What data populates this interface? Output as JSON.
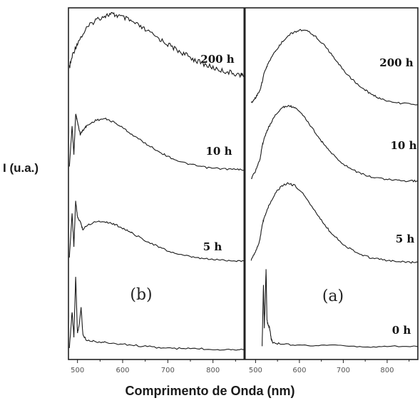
{
  "chart_data": [
    {
      "type": "line",
      "panel": "(b)",
      "xlabel": "Comprimento de Onda (nm)",
      "ylabel": "I (u.a.)",
      "xlim": [
        480,
        870
      ],
      "xticks": [
        500,
        600,
        700,
        800
      ],
      "grid": false,
      "series": [
        {
          "name": "200 h",
          "x": [
            482,
            490,
            500,
            520,
            540,
            560,
            575,
            590,
            610,
            630,
            650,
            680,
            700,
            720,
            740,
            760,
            780,
            800,
            820,
            840,
            860,
            870
          ],
          "y": [
            0.25,
            0.45,
            0.6,
            0.8,
            0.92,
            0.98,
            1.0,
            0.98,
            0.93,
            0.86,
            0.78,
            0.66,
            0.58,
            0.5,
            0.43,
            0.36,
            0.3,
            0.25,
            0.21,
            0.18,
            0.15,
            0.14
          ]
        },
        {
          "name": "10 h",
          "x": [
            482,
            488,
            492,
            496,
            500,
            506,
            512,
            520,
            540,
            560,
            580,
            600,
            620,
            650,
            680,
            700,
            730,
            760,
            790,
            820,
            850,
            870
          ],
          "y": [
            0.05,
            0.55,
            0.2,
            0.7,
            0.6,
            0.45,
            0.5,
            0.55,
            0.62,
            0.64,
            0.6,
            0.53,
            0.45,
            0.34,
            0.24,
            0.18,
            0.11,
            0.07,
            0.04,
            0.03,
            0.02,
            0.02
          ]
        },
        {
          "name": "5 h",
          "x": [
            482,
            488,
            492,
            496,
            500,
            506,
            512,
            520,
            540,
            560,
            580,
            600,
            620,
            650,
            680,
            700,
            730,
            760,
            790,
            820,
            850,
            870
          ],
          "y": [
            0.05,
            0.6,
            0.2,
            0.75,
            0.55,
            0.5,
            0.4,
            0.45,
            0.5,
            0.5,
            0.47,
            0.42,
            0.36,
            0.27,
            0.19,
            0.14,
            0.09,
            0.06,
            0.04,
            0.03,
            0.02,
            0.02
          ]
        },
        {
          "name": "0 h",
          "x": [
            482,
            488,
            492,
            496,
            500,
            504,
            508,
            512,
            520,
            540,
            560,
            600,
            640,
            680,
            720,
            760,
            800,
            840,
            870
          ],
          "y": [
            0.02,
            0.45,
            0.15,
            0.85,
            0.2,
            0.3,
            0.5,
            0.18,
            0.12,
            0.1,
            0.09,
            0.07,
            0.05,
            0.03,
            0.02,
            0.02,
            0.01,
            0.01,
            0.01
          ]
        }
      ]
    },
    {
      "type": "line",
      "panel": "(a)",
      "xlabel": "Comprimento de Onda (nm)",
      "ylabel": "I (u.a.)",
      "xlim": [
        475,
        870
      ],
      "xticks": [
        500,
        600,
        700,
        800
      ],
      "grid": false,
      "series": [
        {
          "name": "200 h",
          "x": [
            490,
            500,
            510,
            515,
            520,
            530,
            545,
            560,
            580,
            600,
            620,
            640,
            660,
            680,
            700,
            720,
            740,
            760,
            780,
            800,
            830,
            870
          ],
          "y": [
            0.05,
            0.12,
            0.22,
            0.32,
            0.45,
            0.58,
            0.72,
            0.84,
            0.95,
            1.0,
            0.98,
            0.9,
            0.78,
            0.63,
            0.48,
            0.36,
            0.26,
            0.18,
            0.12,
            0.08,
            0.05,
            0.03
          ]
        },
        {
          "name": "10 h",
          "x": [
            490,
            500,
            510,
            515,
            520,
            530,
            545,
            560,
            575,
            590,
            610,
            630,
            650,
            670,
            700,
            730,
            760,
            790,
            820,
            850,
            870
          ],
          "y": [
            0.05,
            0.15,
            0.3,
            0.48,
            0.58,
            0.72,
            0.88,
            0.97,
            1.0,
            0.97,
            0.86,
            0.7,
            0.54,
            0.4,
            0.24,
            0.14,
            0.08,
            0.05,
            0.03,
            0.02,
            0.02
          ]
        },
        {
          "name": "5 h",
          "x": [
            490,
            500,
            510,
            515,
            520,
            530,
            545,
            560,
            575,
            590,
            610,
            630,
            650,
            670,
            700,
            730,
            760,
            790,
            820,
            850,
            870
          ],
          "y": [
            0.05,
            0.15,
            0.3,
            0.48,
            0.58,
            0.72,
            0.88,
            0.97,
            1.0,
            0.97,
            0.86,
            0.7,
            0.54,
            0.4,
            0.24,
            0.14,
            0.08,
            0.05,
            0.03,
            0.02,
            0.02
          ]
        },
        {
          "name": "0 h",
          "x": [
            515,
            518,
            520,
            522,
            524,
            526,
            528,
            532,
            536,
            540,
            560,
            600,
            650,
            700,
            750,
            800,
            870
          ],
          "y": [
            0.02,
            0.8,
            0.25,
            0.6,
            1.0,
            0.35,
            0.3,
            0.25,
            0.1,
            0.06,
            0.04,
            0.03,
            0.02,
            0.02,
            0.01,
            0.01,
            0.01
          ]
        }
      ]
    }
  ],
  "labels": {
    "ylabel": "I (u.a.)",
    "xlabel": "Comprimento de Onda (nm)",
    "panel_b": "(b)",
    "panel_a": "(a)"
  },
  "colors": {
    "line": "#1a1a1a",
    "frame": "#222222",
    "tick_text": "#555555"
  }
}
